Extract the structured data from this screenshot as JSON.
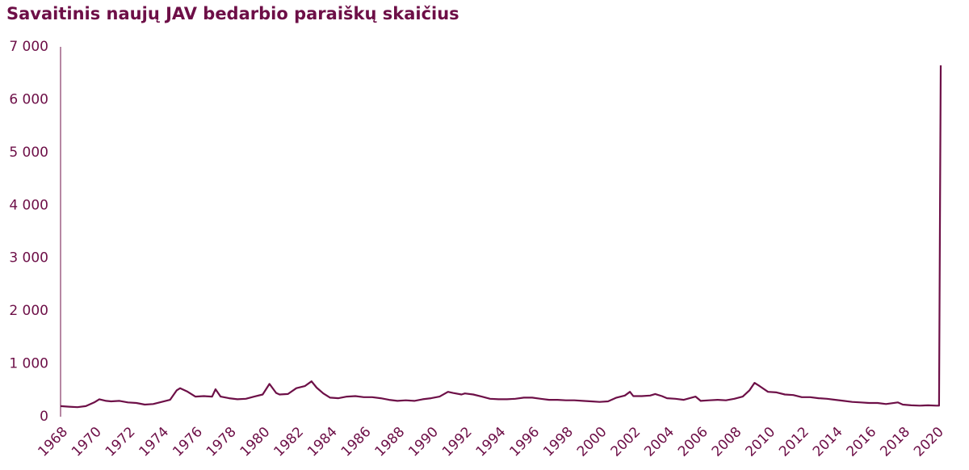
{
  "chart_data": {
    "type": "line",
    "title": "Savaitinis naujų JAV bedarbio paraiškų skaičius",
    "color": "#6d0f47",
    "x": [
      1968,
      1968.5,
      1969,
      1969.5,
      1970,
      1970.3,
      1970.7,
      1971,
      1971.5,
      1972,
      1972.5,
      1973,
      1973.5,
      1974,
      1974.5,
      1974.9,
      1975.1,
      1975.5,
      1976,
      1976.5,
      1977,
      1977.2,
      1977.5,
      1978,
      1978.5,
      1979,
      1979.5,
      1980,
      1980.4,
      1980.8,
      1981,
      1981.5,
      1982,
      1982.5,
      1982.9,
      1983.2,
      1983.6,
      1984,
      1984.5,
      1985,
      1985.5,
      1986,
      1986.5,
      1987,
      1987.5,
      1988,
      1988.5,
      1989,
      1989.5,
      1990,
      1990.5,
      1991,
      1991.3,
      1991.8,
      1992,
      1992.5,
      1993,
      1993.5,
      1994,
      1994.5,
      1995,
      1995.5,
      1996,
      1996.5,
      1997,
      1997.5,
      1998,
      1998.5,
      1999,
      1999.5,
      2000,
      2000.5,
      2001,
      2001.5,
      2001.8,
      2002,
      2002.5,
      2003,
      2003.3,
      2003.7,
      2004,
      2004.5,
      2005,
      2005.7,
      2006,
      2006.5,
      2007,
      2007.5,
      2008,
      2008.5,
      2008.9,
      2009.2,
      2009.5,
      2010,
      2010.5,
      2011,
      2011.5,
      2012,
      2012.5,
      2013,
      2013.5,
      2014,
      2014.5,
      2015,
      2015.5,
      2016,
      2016.5,
      2017,
      2017.7,
      2018,
      2018.5,
      2019,
      2019.5,
      2020,
      2020.15,
      2020.2,
      2020.25
    ],
    "values": [
      200,
      190,
      180,
      200,
      270,
      330,
      300,
      290,
      300,
      270,
      260,
      230,
      240,
      280,
      320,
      500,
      540,
      480,
      380,
      390,
      380,
      520,
      380,
      350,
      330,
      340,
      380,
      420,
      620,
      450,
      420,
      430,
      540,
      580,
      670,
      550,
      440,
      360,
      350,
      380,
      390,
      370,
      370,
      350,
      320,
      300,
      310,
      300,
      330,
      350,
      380,
      470,
      450,
      420,
      440,
      420,
      380,
      340,
      330,
      330,
      340,
      360,
      360,
      340,
      320,
      320,
      310,
      310,
      300,
      290,
      280,
      290,
      360,
      400,
      470,
      390,
      390,
      400,
      430,
      390,
      350,
      340,
      320,
      380,
      300,
      310,
      320,
      310,
      340,
      380,
      500,
      640,
      580,
      470,
      460,
      420,
      410,
      370,
      370,
      350,
      340,
      320,
      300,
      280,
      270,
      260,
      260,
      240,
      270,
      230,
      215,
      210,
      215,
      210,
      210,
      3300,
      6650
    ],
    "xlim": [
      1968,
      2020.3
    ],
    "xticks": [
      1968,
      1970,
      1972,
      1974,
      1976,
      1978,
      1980,
      1982,
      1984,
      1986,
      1988,
      1990,
      1992,
      1994,
      1996,
      1998,
      2000,
      2002,
      2004,
      2006,
      2008,
      2010,
      2012,
      2014,
      2016,
      2018,
      2020
    ],
    "ylim": [
      0,
      7000
    ],
    "yticks": [
      0,
      {
        "value": 1000,
        "label": "1 000"
      },
      {
        "value": 2000,
        "label": "2 000"
      },
      {
        "value": 3000,
        "label": "3 000"
      },
      {
        "value": 4000,
        "label": "4 000"
      },
      {
        "value": 5000,
        "label": "5 000"
      },
      {
        "value": 6000,
        "label": "6 000"
      },
      {
        "value": 7000,
        "label": "7 000"
      }
    ]
  }
}
